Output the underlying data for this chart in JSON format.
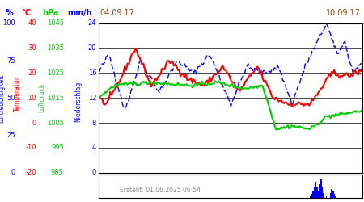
{
  "date_left": "04.09.17",
  "date_right": "10.09.17",
  "footer": "Erstellt: 01.06.2025 06:54",
  "bg_color": "#ffffff",
  "line_blue_color": "#0000ff",
  "line_red_color": "#ff0000",
  "line_green_color": "#00cc00",
  "bar_color": "#0000ff",
  "pct_color": "#0000ff",
  "temp_color": "#ff0000",
  "hpa_color": "#00cc00",
  "mmh_color": "#0000ff",
  "label_lf_color": "#0000ff",
  "label_temp_color": "#ff0000",
  "label_ld_color": "#00cc00",
  "label_ns_color": "#0000ff",
  "date_color": "#8B4513",
  "footer_color": "#888888",
  "grid_color": "#000000",
  "pct_ticks": {
    "0": "0",
    "25": "25",
    "50": "50",
    "75": "75",
    "100": "100"
  },
  "temp_ticks": {
    "-20": "-20",
    "-10": "-10",
    "0": "0",
    "10": "10",
    "20": "20",
    "30": "30",
    "40": "40"
  },
  "hpa_ticks": {
    "985": "985",
    "995": "995",
    "1005": "1005",
    "1015": "1015",
    "1025": "1025",
    "1035": "1035",
    "1045": "1045"
  },
  "mmh_ticks": {
    "0": "0",
    "4": "4",
    "8": "8",
    "12": "12",
    "16": "16",
    "20": "20",
    "24": "24"
  }
}
